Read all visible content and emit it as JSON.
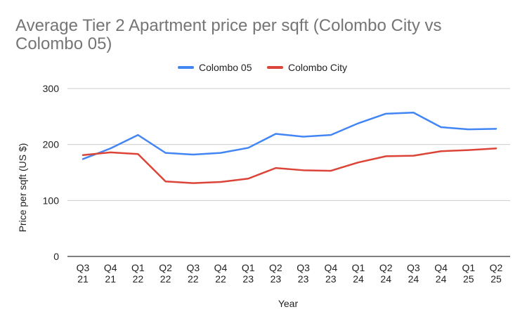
{
  "chart_data": {
    "type": "line",
    "title_lines": [
      "Average Tier 2 Apartment price per sqft (Colombo City vs",
      "Colombo 05)"
    ],
    "xlabel": "Year",
    "ylabel": "Price per sqft (US $)",
    "ylim": [
      0,
      300
    ],
    "yticks": [
      0,
      100,
      200,
      300
    ],
    "grid": true,
    "legend_position": "top-center",
    "categories": [
      [
        "Q3",
        "21"
      ],
      [
        "Q4",
        "21"
      ],
      [
        "Q1",
        "22"
      ],
      [
        "Q2",
        "22"
      ],
      [
        "Q3",
        "22"
      ],
      [
        "Q4",
        "22"
      ],
      [
        "Q1",
        "23"
      ],
      [
        "Q2",
        "23"
      ],
      [
        "Q3",
        "23"
      ],
      [
        "Q4",
        "23"
      ],
      [
        "Q1",
        "24"
      ],
      [
        "Q2",
        "24"
      ],
      [
        "Q3",
        "24"
      ],
      [
        "Q4",
        "24"
      ],
      [
        "Q1",
        "25"
      ],
      [
        "Q2",
        "25"
      ]
    ],
    "series": [
      {
        "name": "Colombo 05",
        "color": "#4285f4",
        "values": [
          174,
          193,
          217,
          185,
          182,
          185,
          194,
          219,
          214,
          217,
          238,
          255,
          257,
          231,
          227,
          228
        ]
      },
      {
        "name": "Colombo City",
        "color": "#db4437",
        "values": [
          181,
          186,
          183,
          134,
          131,
          133,
          139,
          158,
          154,
          153,
          168,
          179,
          180,
          188,
          190,
          193
        ]
      }
    ]
  }
}
